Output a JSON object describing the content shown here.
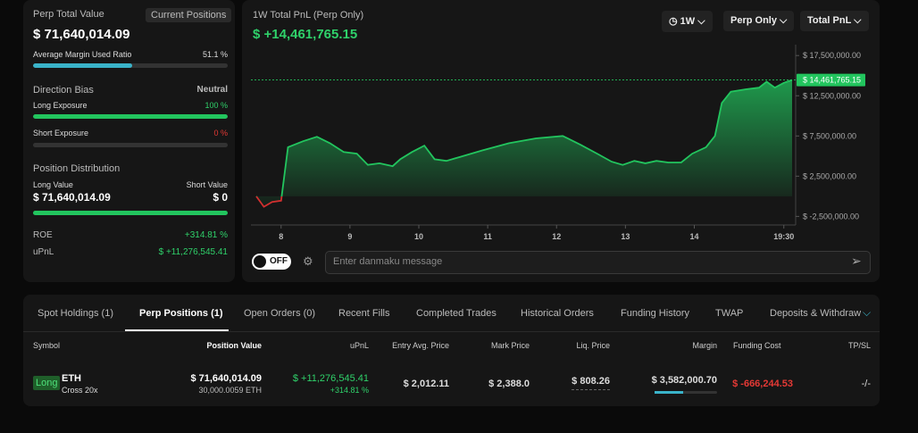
{
  "left_panel": {
    "title": "Perp Total Value",
    "button": "Current Positions",
    "total_value": "$ 71,640,014.09",
    "margin_ratio": {
      "label": "Average Margin Used Ratio",
      "value": 51.1,
      "value_label": "51.1 %"
    },
    "direction_bias": {
      "label": "Direction Bias",
      "value": "Neutral"
    },
    "long_exposure": {
      "label": "Long Exposure",
      "value": 100,
      "value_label": "100 %"
    },
    "short_exposure": {
      "label": "Short Exposure",
      "value": 0,
      "value_label": "0 %"
    },
    "position_distribution": {
      "title": "Position Distribution",
      "long_label": "Long Value",
      "long_value": "$ 71,640,014.09",
      "short_label": "Short Value",
      "short_value": "$ 0"
    },
    "roe": {
      "label": "ROE",
      "value": "+314.81 %"
    },
    "upnl": {
      "label": "uPnL",
      "value": "$ +11,276,545.41"
    }
  },
  "chart_panel": {
    "controls": [
      "1W",
      "Perp Only",
      "Total PnL"
    ],
    "danmaku_toggle": "OFF",
    "danmaku_placeholder": "Enter danmaku message"
  },
  "chart_data": {
    "type": "line",
    "title": "1W Total PnL (Perp Only)",
    "headline": "$ +14,461,765.15",
    "x": [
      7.64,
      7.75,
      7.87,
      8.0,
      8.1,
      8.32,
      8.52,
      8.71,
      8.91,
      9.1,
      9.26,
      9.43,
      9.62,
      9.73,
      9.9,
      10.08,
      10.23,
      10.4,
      10.6,
      10.92,
      11.31,
      11.7,
      12.09,
      12.35,
      12.61,
      12.8,
      12.96,
      13.13,
      13.29,
      13.45,
      13.62,
      13.81,
      13.97,
      14.17,
      14.3,
      14.4,
      14.53,
      14.75,
      14.94,
      15.05,
      15.17,
      15.3,
      15.42
    ],
    "values": [
      0,
      -1300000,
      -700000,
      -550000,
      6100000,
      6850000,
      7400000,
      6600000,
      5500000,
      5300000,
      3900000,
      4100000,
      3750000,
      4600000,
      5500000,
      6300000,
      4600000,
      4400000,
      4900000,
      5700000,
      6600000,
      7200000,
      7500000,
      6400000,
      5200000,
      4300000,
      3900000,
      4400000,
      4100000,
      4400000,
      4200000,
      4200000,
      5300000,
      6100000,
      7500000,
      11600000,
      13000000,
      13300000,
      13500000,
      14250000,
      13500000,
      14100000,
      14461765.15
    ],
    "color": "#22c55e",
    "negative_color": "#d32f2f",
    "last_value": {
      "value": 14461765.15,
      "label": "$ 14,461,765.15"
    },
    "xlim": [
      7.64,
      15.42
    ],
    "xticks": [
      8,
      9,
      10,
      11,
      12,
      13,
      14,
      {
        "value": 15.3,
        "label": "19:30"
      }
    ],
    "ylim": [
      -3900000,
      18300000
    ],
    "yticks": [
      {
        "value": 17500000,
        "label": "$ 17,500,000.00"
      },
      {
        "value": 12500000,
        "label": "$ 12,500,000.00"
      },
      {
        "value": 7500000,
        "label": "$ 7,500,000.00"
      },
      {
        "value": 2500000,
        "label": "$ 2,500,000.00"
      },
      {
        "value": -2500000,
        "label": "$ -2,500,000.00"
      }
    ]
  },
  "tabs": {
    "items": [
      "Spot Holdings (1)",
      "Perp Positions (1)",
      "Open Orders (0)",
      "Recent Fills",
      "Completed Trades",
      "Historical Orders",
      "Funding History",
      "TWAP",
      "Deposits & Withdraw"
    ],
    "active": 1
  },
  "table": {
    "headers": [
      "Symbol",
      "Position Value",
      "uPnL",
      "Entry Avg. Price",
      "Mark Price",
      "Liq. Price",
      "Margin",
      "Funding Cost",
      "TP/SL"
    ],
    "row": {
      "side": "Long",
      "symbol": "ETH",
      "leverage": "Cross 20x",
      "position_value": "$ 71,640,014.09",
      "size": "30,000.0059 ETH",
      "upnl": "$ +11,276,545.41",
      "upnl_pct": "+314.81 %",
      "entry": "$ 2,012.11",
      "mark": "$ 2,388.0",
      "liq": "$ 808.26",
      "margin": "$ 3,582,000.70",
      "funding": "$ -666,244.53",
      "tpsl": "-/-"
    }
  }
}
